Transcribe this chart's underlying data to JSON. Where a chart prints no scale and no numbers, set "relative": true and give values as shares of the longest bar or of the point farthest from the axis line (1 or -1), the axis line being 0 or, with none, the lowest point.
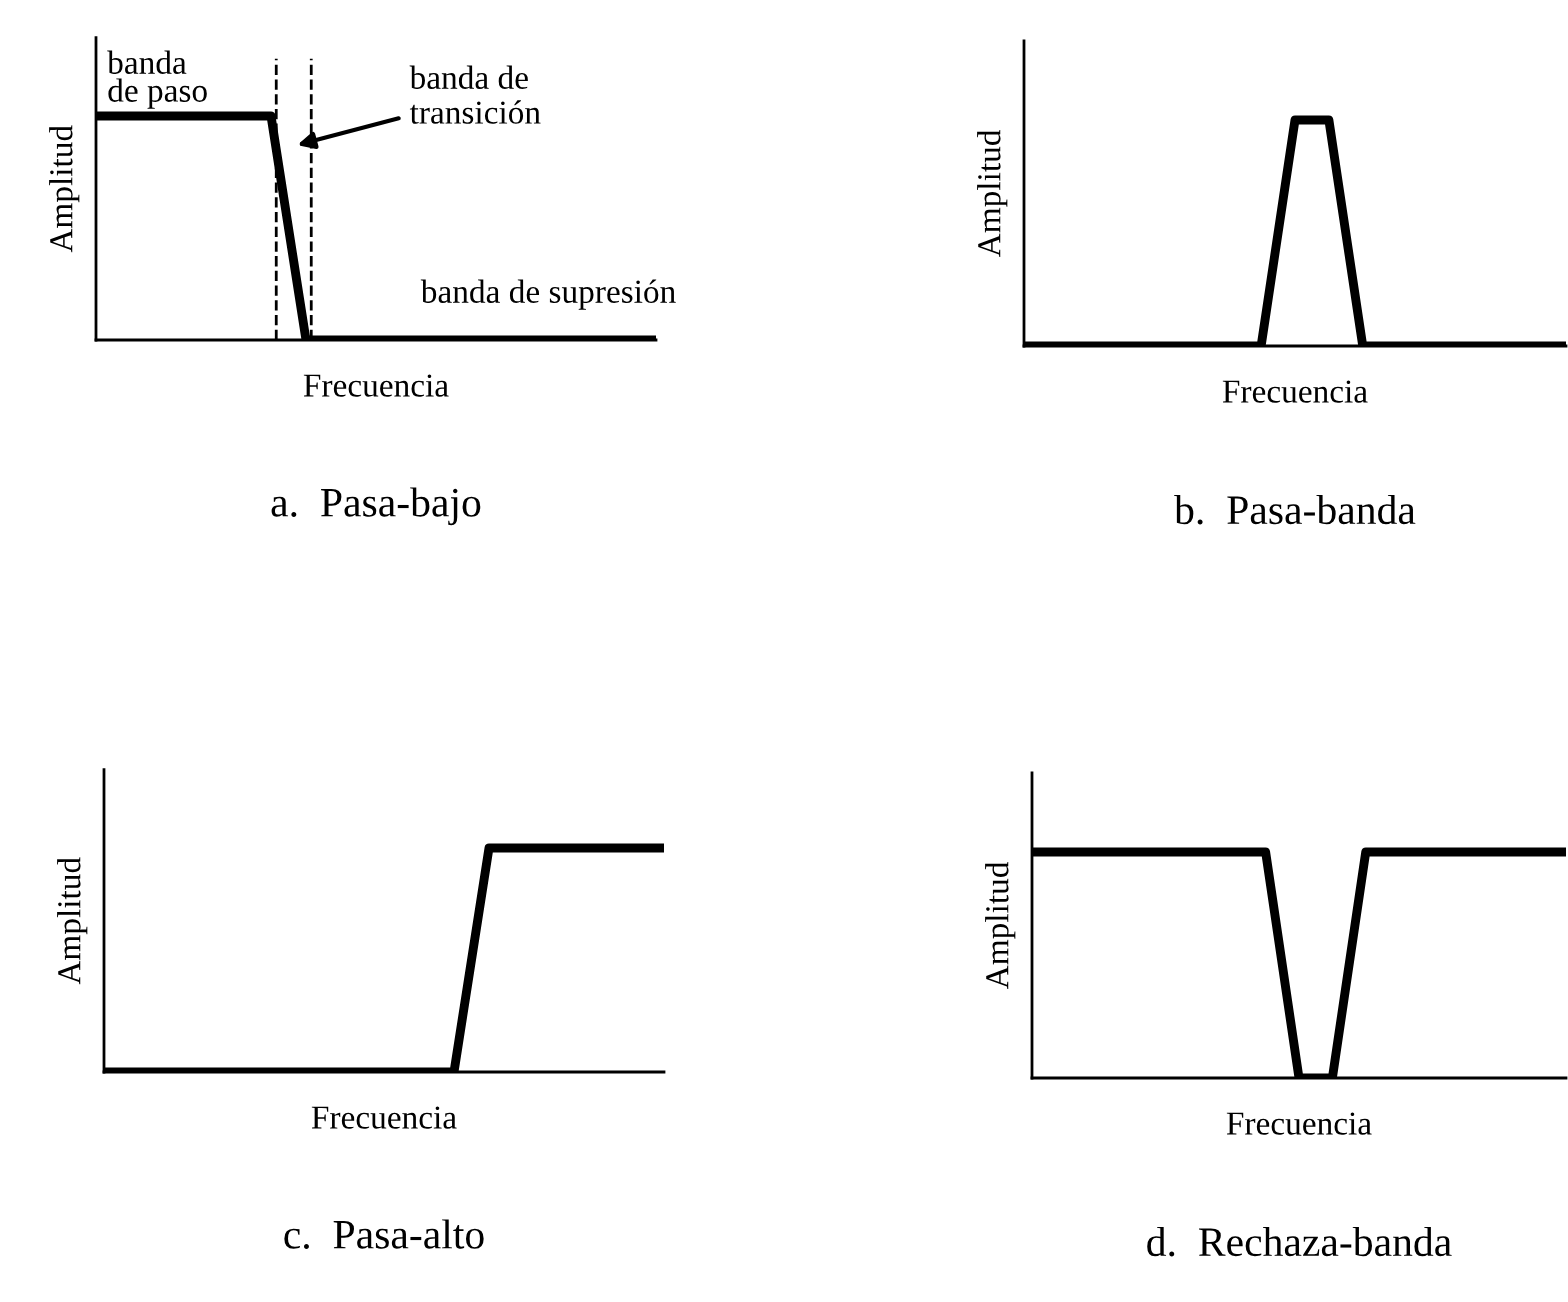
{
  "chart_data": [
    {
      "type": "line",
      "relative": true,
      "title": "a.  Pasa-bajo",
      "xlabel": "Frecuencia",
      "ylabel": "Amplitud",
      "categories": [
        null,
        null,
        null,
        null,
        null,
        null,
        null,
        null,
        null,
        null,
        null,
        null,
        null,
        null,
        null,
        null,
        null
      ],
      "series": [
        {
          "color": "#000000",
          "values": [
            1,
            1,
            1,
            1,
            1,
            1,
            0,
            0,
            0,
            0,
            0,
            0,
            0,
            0,
            0,
            0,
            0
          ]
        }
      ],
      "annotations": [
        "banda\nde paso",
        "banda de\ntransición",
        "banda de supresión"
      ],
      "tick_labels": false,
      "marker": "none",
      "line_style": "solid"
    },
    {
      "type": "line",
      "relative": true,
      "title": "b.  Pasa-banda",
      "xlabel": "Frecuencia",
      "ylabel": "Amplitud",
      "categories": [
        null,
        null,
        null,
        null,
        null,
        null,
        null,
        null,
        null,
        null,
        null,
        null,
        null,
        null,
        null,
        null,
        null
      ],
      "series": [
        {
          "color": "#000000",
          "values": [
            0,
            0,
            0,
            0,
            0,
            0,
            0,
            0,
            1,
            1,
            0,
            0,
            0,
            0,
            0,
            0,
            0
          ]
        }
      ],
      "tick_labels": false,
      "marker": "none",
      "line_style": "solid"
    },
    {
      "type": "line",
      "relative": true,
      "title": "c.  Pasa-alto",
      "xlabel": "Frecuencia",
      "ylabel": "Amplitud",
      "categories": [
        null,
        null,
        null,
        null,
        null,
        null,
        null,
        null,
        null,
        null,
        null,
        null,
        null,
        null,
        null,
        null,
        null
      ],
      "series": [
        {
          "color": "#000000",
          "values": [
            0,
            0,
            0,
            0,
            0,
            0,
            0,
            0,
            0,
            0,
            0,
            1,
            1,
            1,
            1,
            1,
            1
          ]
        }
      ],
      "tick_labels": false,
      "marker": "none",
      "line_style": "solid"
    },
    {
      "type": "line",
      "relative": true,
      "title": "d.  Rechaza-banda",
      "xlabel": "Frecuencia",
      "ylabel": "Amplitud",
      "categories": [
        null,
        null,
        null,
        null,
        null,
        null,
        null,
        null,
        null,
        null,
        null,
        null,
        null,
        null,
        null,
        null,
        null
      ],
      "series": [
        {
          "color": "#000000",
          "values": [
            1,
            1,
            1,
            1,
            1,
            1,
            1,
            1,
            0,
            0,
            1,
            1,
            1,
            1,
            1,
            1,
            1
          ]
        }
      ],
      "tick_labels": false,
      "marker": "none",
      "line_style": "solid"
    }
  ]
}
